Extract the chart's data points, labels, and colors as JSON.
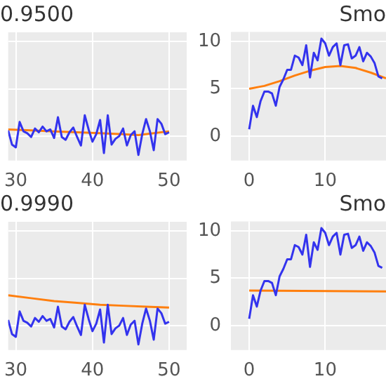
{
  "chart_data": [
    {
      "type": "line",
      "title": "0.9500",
      "xlim": [
        29,
        52.3
      ],
      "xticks": [
        30,
        40,
        50
      ],
      "ylim": [
        -2.6,
        11
      ],
      "yticks": [
        0,
        5,
        10
      ],
      "grid": true,
      "tick_labels": "x",
      "series": [
        {
          "color": "#3333ee",
          "x": [
            29,
            29.5,
            30,
            30.5,
            31,
            31.5,
            32,
            32.5,
            33,
            33.5,
            34,
            34.5,
            35,
            35.5,
            36,
            36.5,
            37,
            37.5,
            38,
            38.5,
            39,
            39.5,
            40,
            40.5,
            41,
            41.5,
            42,
            42.5,
            43,
            43.5,
            44,
            44.5,
            45,
            45.5,
            46,
            46.5,
            47,
            47.5,
            48,
            48.5,
            49,
            49.5,
            50
          ],
          "values": [
            0.6,
            -0.9,
            -1.2,
            1.5,
            0.5,
            0.3,
            -0.1,
            0.8,
            0.4,
            1.0,
            0.5,
            0.7,
            -0.2,
            2.0,
            -0.1,
            -0.4,
            0.4,
            0.9,
            -0.1,
            -1.0,
            2.2,
            0.7,
            -0.6,
            0.2,
            1.7,
            -1.8,
            2.2,
            -0.9,
            -0.3,
            0.0,
            0.8,
            -1.0,
            0.1,
            0.5,
            -2.0,
            0.2,
            1.8,
            0.5,
            -1.5,
            1.8,
            1.3,
            0.2,
            0.4
          ]
        },
        {
          "color": "#ff7f0e",
          "x": [
            29,
            32,
            35,
            38,
            41,
            44,
            46,
            48,
            50
          ],
          "values": [
            0.7,
            0.6,
            0.5,
            0.4,
            0.3,
            0.2,
            0.1,
            0.3,
            0.5
          ]
        }
      ]
    },
    {
      "type": "line",
      "title": "Smo",
      "xlim": [
        -2.4,
        18
      ],
      "xticks": [
        0,
        10
      ],
      "ylim": [
        -2.6,
        11
      ],
      "yticks": [
        0,
        5,
        10
      ],
      "grid": true,
      "series": [
        {
          "color": "#3333ee",
          "x": [
            0,
            0.5,
            1,
            1.5,
            2,
            2.5,
            3,
            3.5,
            4,
            4.5,
            5,
            5.5,
            6,
            6.5,
            7,
            7.5,
            8,
            8.5,
            9,
            9.5,
            10,
            10.5,
            11,
            11.5,
            12,
            12.5,
            13,
            13.5,
            14,
            14.5,
            15,
            15.5,
            16,
            16.5,
            17,
            17.5
          ],
          "values": [
            0.7,
            3.2,
            2,
            3.7,
            4.7,
            4.7,
            4.5,
            3.2,
            5.2,
            6,
            7,
            7,
            8.5,
            8.3,
            7.5,
            9.6,
            6.2,
            8.8,
            8,
            10.3,
            9.8,
            8.5,
            9.4,
            9.8,
            7.5,
            9.6,
            9.7,
            8.2,
            8.5,
            9.4,
            7.9,
            8.8,
            8.4,
            7.7,
            6.3,
            6.1
          ]
        },
        {
          "color": "#ff7f0e",
          "x": [
            0,
            2,
            4,
            6,
            8,
            10,
            12,
            14,
            16,
            18
          ],
          "values": [
            5.0,
            5.3,
            5.8,
            6.4,
            6.9,
            7.3,
            7.4,
            7.2,
            6.7,
            6.1
          ]
        }
      ]
    },
    {
      "type": "line",
      "title": "0.9990",
      "xlim": [
        29,
        52.3
      ],
      "xticks": [
        30,
        40,
        50
      ],
      "ylim": [
        -2.6,
        11
      ],
      "yticks": [
        0,
        5,
        10
      ],
      "grid": true,
      "tick_labels": "x",
      "series": [
        {
          "color": "#3333ee",
          "x": [
            29,
            29.5,
            30,
            30.5,
            31,
            31.5,
            32,
            32.5,
            33,
            33.5,
            34,
            34.5,
            35,
            35.5,
            36,
            36.5,
            37,
            37.5,
            38,
            38.5,
            39,
            39.5,
            40,
            40.5,
            41,
            41.5,
            42,
            42.5,
            43,
            43.5,
            44,
            44.5,
            45,
            45.5,
            46,
            46.5,
            47,
            47.5,
            48,
            48.5,
            49,
            49.5,
            50
          ],
          "values": [
            0.6,
            -0.9,
            -1.2,
            1.5,
            0.5,
            0.3,
            -0.1,
            0.8,
            0.4,
            1.0,
            0.5,
            0.7,
            -0.2,
            2.0,
            -0.1,
            -0.4,
            0.4,
            0.9,
            -0.1,
            -1.0,
            2.2,
            0.7,
            -0.6,
            0.2,
            1.7,
            -1.8,
            2.2,
            -0.9,
            -0.3,
            0.0,
            0.8,
            -1.0,
            0.1,
            0.5,
            -2.0,
            0.2,
            1.8,
            0.5,
            -1.5,
            1.8,
            1.3,
            0.2,
            0.4
          ]
        },
        {
          "color": "#ff7f0e",
          "x": [
            29,
            32,
            35,
            38,
            41,
            44,
            47,
            50
          ],
          "values": [
            3.2,
            2.9,
            2.6,
            2.4,
            2.2,
            2.1,
            2.0,
            1.9
          ]
        }
      ]
    },
    {
      "type": "line",
      "title": "Smo",
      "xlim": [
        -2.4,
        18
      ],
      "xticks": [
        0,
        10
      ],
      "ylim": [
        -2.6,
        11
      ],
      "yticks": [
        0,
        5,
        10
      ],
      "grid": true,
      "series": [
        {
          "color": "#3333ee",
          "x": [
            0,
            0.5,
            1,
            1.5,
            2,
            2.5,
            3,
            3.5,
            4,
            4.5,
            5,
            5.5,
            6,
            6.5,
            7,
            7.5,
            8,
            8.5,
            9,
            9.5,
            10,
            10.5,
            11,
            11.5,
            12,
            12.5,
            13,
            13.5,
            14,
            14.5,
            15,
            15.5,
            16,
            16.5,
            17,
            17.5
          ],
          "values": [
            0.7,
            3.2,
            2,
            3.7,
            4.7,
            4.7,
            4.5,
            3.2,
            5.2,
            6,
            7,
            7,
            8.5,
            8.3,
            7.5,
            9.6,
            6.2,
            8.8,
            8,
            10.3,
            9.8,
            8.5,
            9.4,
            9.8,
            7.5,
            9.6,
            9.7,
            8.2,
            8.5,
            9.4,
            7.9,
            8.8,
            8.4,
            7.7,
            6.3,
            6.1
          ]
        },
        {
          "color": "#ff7f0e",
          "x": [
            0,
            18
          ],
          "values": [
            3.7,
            3.6
          ]
        }
      ]
    }
  ]
}
